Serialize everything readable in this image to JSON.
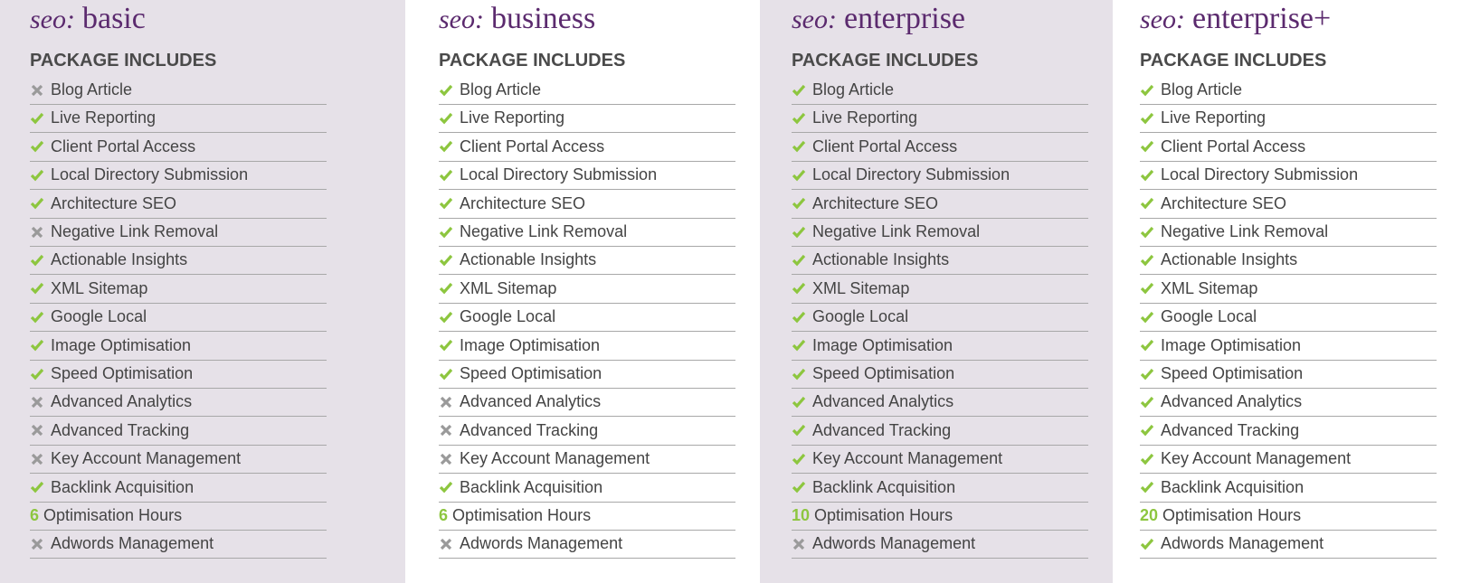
{
  "packages": [
    {
      "prefix": "seo:",
      "name": "basic",
      "heading": "PACKAGE INCLUDES",
      "items": [
        {
          "status": "x",
          "label": "Blog Article"
        },
        {
          "status": "check",
          "label": "Live Reporting"
        },
        {
          "status": "check",
          "label": "Client Portal Access"
        },
        {
          "status": "check",
          "label": "Local Directory Submission"
        },
        {
          "status": "check",
          "label": "Architecture SEO"
        },
        {
          "status": "x",
          "label": "Negative Link Removal"
        },
        {
          "status": "check",
          "label": "Actionable Insights"
        },
        {
          "status": "check",
          "label": "XML Sitemap"
        },
        {
          "status": "check",
          "label": "Google Local"
        },
        {
          "status": "check",
          "label": "Image Optimisation"
        },
        {
          "status": "check",
          "label": "Speed Optimisation"
        },
        {
          "status": "x",
          "label": "Advanced Analytics"
        },
        {
          "status": "x",
          "label": "Advanced Tracking"
        },
        {
          "status": "x",
          "label": "Key Account Management"
        },
        {
          "status": "check",
          "label": "Backlink Acquisition"
        },
        {
          "hours": 6,
          "label": "Optimisation Hours"
        },
        {
          "status": "x",
          "label": "Adwords Management"
        }
      ]
    },
    {
      "prefix": "seo:",
      "name": "business",
      "heading": "PACKAGE INCLUDES",
      "items": [
        {
          "status": "check",
          "label": "Blog Article"
        },
        {
          "status": "check",
          "label": "Live Reporting"
        },
        {
          "status": "check",
          "label": "Client Portal Access"
        },
        {
          "status": "check",
          "label": "Local Directory Submission"
        },
        {
          "status": "check",
          "label": "Architecture SEO"
        },
        {
          "status": "check",
          "label": "Negative Link Removal"
        },
        {
          "status": "check",
          "label": "Actionable Insights"
        },
        {
          "status": "check",
          "label": "XML Sitemap"
        },
        {
          "status": "check",
          "label": "Google Local"
        },
        {
          "status": "check",
          "label": "Image Optimisation"
        },
        {
          "status": "check",
          "label": "Speed Optimisation"
        },
        {
          "status": "x",
          "label": "Advanced Analytics"
        },
        {
          "status": "x",
          "label": "Advanced Tracking"
        },
        {
          "status": "x",
          "label": "Key Account Management"
        },
        {
          "status": "check",
          "label": "Backlink Acquisition"
        },
        {
          "hours": 6,
          "label": "Optimisation Hours"
        },
        {
          "status": "x",
          "label": "Adwords Management"
        }
      ]
    },
    {
      "prefix": "seo:",
      "name": "enterprise",
      "heading": "PACKAGE INCLUDES",
      "items": [
        {
          "status": "check",
          "label": "Blog Article"
        },
        {
          "status": "check",
          "label": "Live Reporting"
        },
        {
          "status": "check",
          "label": "Client Portal Access"
        },
        {
          "status": "check",
          "label": "Local Directory Submission"
        },
        {
          "status": "check",
          "label": "Architecture SEO"
        },
        {
          "status": "check",
          "label": "Negative Link Removal"
        },
        {
          "status": "check",
          "label": "Actionable Insights"
        },
        {
          "status": "check",
          "label": "XML Sitemap"
        },
        {
          "status": "check",
          "label": "Google Local"
        },
        {
          "status": "check",
          "label": "Image Optimisation"
        },
        {
          "status": "check",
          "label": "Speed Optimisation"
        },
        {
          "status": "check",
          "label": "Advanced Analytics"
        },
        {
          "status": "check",
          "label": "Advanced Tracking"
        },
        {
          "status": "check",
          "label": "Key Account Management"
        },
        {
          "status": "check",
          "label": "Backlink Acquisition"
        },
        {
          "hours": 10,
          "label": "Optimisation Hours"
        },
        {
          "status": "x",
          "label": "Adwords Management"
        }
      ]
    },
    {
      "prefix": "seo:",
      "name": "enterprise+",
      "heading": "PACKAGE INCLUDES",
      "items": [
        {
          "status": "check",
          "label": "Blog Article"
        },
        {
          "status": "check",
          "label": "Live Reporting"
        },
        {
          "status": "check",
          "label": "Client Portal Access"
        },
        {
          "status": "check",
          "label": "Local Directory Submission"
        },
        {
          "status": "check",
          "label": "Architecture SEO"
        },
        {
          "status": "check",
          "label": "Negative Link Removal"
        },
        {
          "status": "check",
          "label": "Actionable Insights"
        },
        {
          "status": "check",
          "label": "XML Sitemap"
        },
        {
          "status": "check",
          "label": "Google Local"
        },
        {
          "status": "check",
          "label": "Image Optimisation"
        },
        {
          "status": "check",
          "label": "Speed Optimisation"
        },
        {
          "status": "check",
          "label": "Advanced Analytics"
        },
        {
          "status": "check",
          "label": "Advanced Tracking"
        },
        {
          "status": "check",
          "label": "Key Account Management"
        },
        {
          "status": "check",
          "label": "Backlink Acquisition"
        },
        {
          "hours": 20,
          "label": "Optimisation Hours"
        },
        {
          "status": "check",
          "label": "Adwords Management"
        }
      ]
    }
  ]
}
